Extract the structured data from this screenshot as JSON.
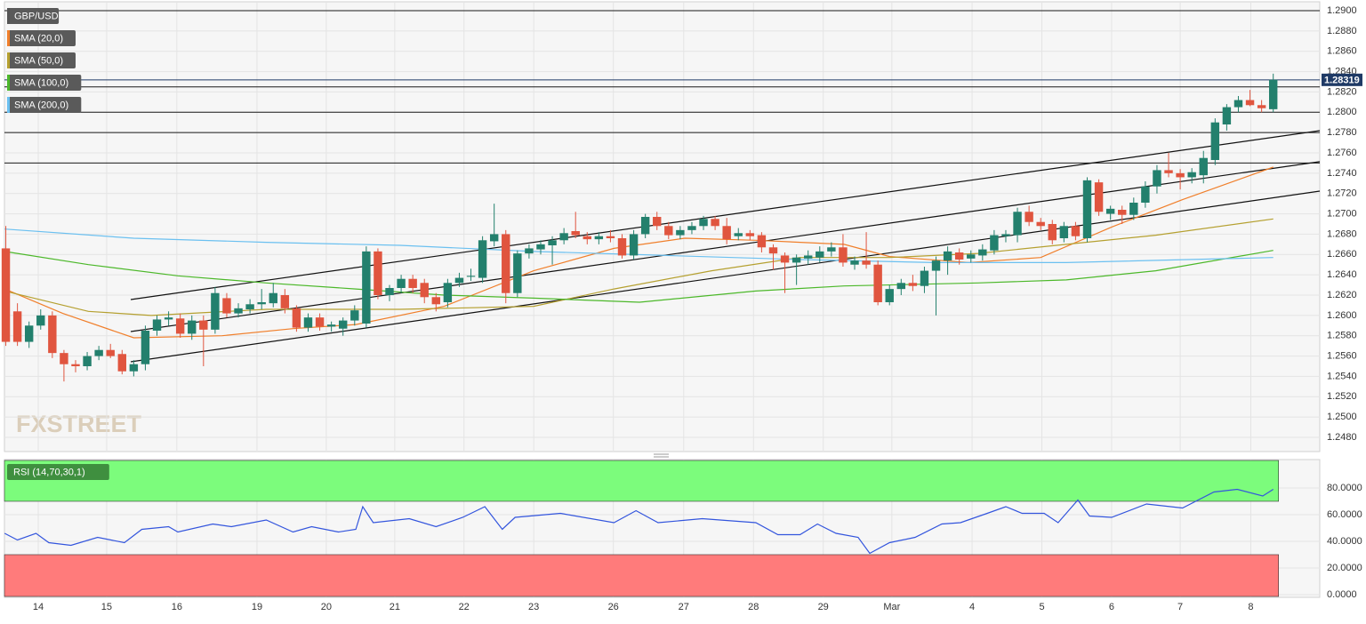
{
  "chart_data": [
    {
      "type": "candlestick",
      "title": "GBP/USD",
      "xlim": [
        -0.5,
        113
      ],
      "ylim": [
        1.2466,
        1.29105
      ],
      "yticks": [
        {
          "value": 1.248,
          "label": "1.2480"
        },
        {
          "value": 1.25,
          "label": "1.2500"
        },
        {
          "value": 1.252,
          "label": "1.2520"
        },
        {
          "value": 1.254,
          "label": "1.2540"
        },
        {
          "value": 1.256,
          "label": "1.2560"
        },
        {
          "value": 1.258,
          "label": "1.2580"
        },
        {
          "value": 1.26,
          "label": "1.2600"
        },
        {
          "value": 1.262,
          "label": "1.2620"
        },
        {
          "value": 1.264,
          "label": "1.2640"
        },
        {
          "value": 1.266,
          "label": "1.2660"
        },
        {
          "value": 1.268,
          "label": "1.2680"
        },
        {
          "value": 1.27,
          "label": "1.2700"
        },
        {
          "value": 1.272,
          "label": "1.2720"
        },
        {
          "value": 1.274,
          "label": "1.2740"
        },
        {
          "value": 1.276,
          "label": "1.2760"
        },
        {
          "value": 1.278,
          "label": "1.2780"
        },
        {
          "value": 1.28,
          "label": "1.2800"
        },
        {
          "value": 1.282,
          "label": "1.2820"
        },
        {
          "value": 1.284,
          "label": "1.2840"
        },
        {
          "value": 1.286,
          "label": "1.2860"
        },
        {
          "value": 1.288,
          "label": "1.2880"
        },
        {
          "value": 1.29,
          "label": "1.2900"
        }
      ],
      "grid": true,
      "up_color": "#23806d",
      "down_color": "#e0553f",
      "ohlc": [
        [
          1.2666,
          1.2688,
          1.257,
          1.2574
        ],
        [
          1.2604,
          1.2612,
          1.257,
          1.2574
        ],
        [
          1.2574,
          1.2594,
          1.2568,
          1.259
        ],
        [
          1.259,
          1.2606,
          1.2586,
          1.26
        ],
        [
          1.26,
          1.2604,
          1.2558,
          1.2563
        ],
        [
          1.2563,
          1.2566,
          1.2535,
          1.2552
        ],
        [
          1.2552,
          1.2556,
          1.2544,
          1.255
        ],
        [
          1.255,
          1.2564,
          1.2546,
          1.256
        ],
        [
          1.256,
          1.257,
          1.2556,
          1.2566
        ],
        [
          1.2566,
          1.2572,
          1.2558,
          1.256
        ],
        [
          1.2562,
          1.2566,
          1.2542,
          1.2545
        ],
        [
          1.2545,
          1.2556,
          1.254,
          1.2552
        ],
        [
          1.2552,
          1.259,
          1.2546,
          1.2585
        ],
        [
          1.2585,
          1.26,
          1.258,
          1.2596
        ],
        [
          1.2596,
          1.2604,
          1.259,
          1.2598
        ],
        [
          1.2597,
          1.2602,
          1.2578,
          1.2582
        ],
        [
          1.2582,
          1.26,
          1.2576,
          1.2595
        ],
        [
          1.2595,
          1.26,
          1.255,
          1.2586
        ],
        [
          1.2586,
          1.2628,
          1.2582,
          1.2622
        ],
        [
          1.2617,
          1.2622,
          1.2598,
          1.2602
        ],
        [
          1.2602,
          1.2612,
          1.2598,
          1.2607
        ],
        [
          1.2606,
          1.2616,
          1.2602,
          1.2611
        ],
        [
          1.2611,
          1.2626,
          1.2606,
          1.2613
        ],
        [
          1.2612,
          1.2632,
          1.2608,
          1.2622
        ],
        [
          1.262,
          1.2626,
          1.2602,
          1.2607
        ],
        [
          1.2607,
          1.261,
          1.2584,
          1.2588
        ],
        [
          1.2588,
          1.2602,
          1.2584,
          1.2598
        ],
        [
          1.2598,
          1.2602,
          1.2585,
          1.2589
        ],
        [
          1.2589,
          1.2594,
          1.2584,
          1.2591
        ],
        [
          1.2587,
          1.2598,
          1.258,
          1.2595
        ],
        [
          1.2595,
          1.261,
          1.259,
          1.2605
        ],
        [
          1.2592,
          1.2668,
          1.2588,
          1.2663
        ],
        [
          1.2663,
          1.2666,
          1.2616,
          1.262
        ],
        [
          1.262,
          1.263,
          1.2614,
          1.2627
        ],
        [
          1.2627,
          1.264,
          1.2622,
          1.2636
        ],
        [
          1.2636,
          1.264,
          1.2622,
          1.2627
        ],
        [
          1.2632,
          1.2636,
          1.2612,
          1.2618
        ],
        [
          1.2618,
          1.2622,
          1.2604,
          1.2611
        ],
        [
          1.2613,
          1.2636,
          1.2608,
          1.2632
        ],
        [
          1.2632,
          1.2642,
          1.2628,
          1.2637
        ],
        [
          1.2638,
          1.2646,
          1.2634,
          1.2639
        ],
        [
          1.2637,
          1.2678,
          1.2632,
          1.2674
        ],
        [
          1.2673,
          1.271,
          1.2668,
          1.268
        ],
        [
          1.268,
          1.2684,
          1.2612,
          1.2622
        ],
        [
          1.2622,
          1.2664,
          1.2618,
          1.2661
        ],
        [
          1.2661,
          1.267,
          1.2656,
          1.2666
        ],
        [
          1.2665,
          1.2674,
          1.266,
          1.267
        ],
        [
          1.2669,
          1.2678,
          1.265,
          1.2674
        ],
        [
          1.2674,
          1.2686,
          1.267,
          1.2681
        ],
        [
          1.2683,
          1.2702,
          1.2676,
          1.2679
        ],
        [
          1.2678,
          1.2682,
          1.267,
          1.2675
        ],
        [
          1.2675,
          1.2682,
          1.267,
          1.2678
        ],
        [
          1.2678,
          1.2684,
          1.2672,
          1.2676
        ],
        [
          1.2676,
          1.268,
          1.2656,
          1.2659
        ],
        [
          1.2659,
          1.2684,
          1.2655,
          1.268
        ],
        [
          1.268,
          1.27,
          1.2676,
          1.2697
        ],
        [
          1.2697,
          1.2702,
          1.2684,
          1.2688
        ],
        [
          1.2688,
          1.2692,
          1.2675,
          1.2679
        ],
        [
          1.2679,
          1.2688,
          1.2675,
          1.2684
        ],
        [
          1.2684,
          1.2692,
          1.268,
          1.2688
        ],
        [
          1.2688,
          1.2698,
          1.2684,
          1.2695
        ],
        [
          1.2695,
          1.2698,
          1.2684,
          1.2688
        ],
        [
          1.2688,
          1.2696,
          1.267,
          1.2675
        ],
        [
          1.2678,
          1.2686,
          1.2674,
          1.2681
        ],
        [
          1.2681,
          1.2684,
          1.2674,
          1.2678
        ],
        [
          1.2679,
          1.2682,
          1.2662,
          1.2667
        ],
        [
          1.2667,
          1.267,
          1.2645,
          1.2661
        ],
        [
          1.2659,
          1.2662,
          1.2622,
          1.2652
        ],
        [
          1.2652,
          1.266,
          1.263,
          1.2657
        ],
        [
          1.2656,
          1.2664,
          1.265,
          1.2659
        ],
        [
          1.2657,
          1.2668,
          1.2652,
          1.2663
        ],
        [
          1.2663,
          1.2672,
          1.2658,
          1.2667
        ],
        [
          1.2667,
          1.268,
          1.2648,
          1.2652
        ],
        [
          1.265,
          1.2658,
          1.2645,
          1.2654
        ],
        [
          1.2654,
          1.2682,
          1.2646,
          1.265
        ],
        [
          1.265,
          1.2654,
          1.261,
          1.2613
        ],
        [
          1.2613,
          1.263,
          1.261,
          1.2626
        ],
        [
          1.2626,
          1.2636,
          1.262,
          1.2632
        ],
        [
          1.2632,
          1.264,
          1.2624,
          1.2629
        ],
        [
          1.2629,
          1.2648,
          1.2622,
          1.2644
        ],
        [
          1.2644,
          1.2658,
          1.26,
          1.2654
        ],
        [
          1.2654,
          1.2668,
          1.264,
          1.2663
        ],
        [
          1.2662,
          1.2666,
          1.265,
          1.2655
        ],
        [
          1.2656,
          1.2664,
          1.2652,
          1.266
        ],
        [
          1.2659,
          1.267,
          1.2654,
          1.2665
        ],
        [
          1.2664,
          1.2684,
          1.266,
          1.2679
        ],
        [
          1.2678,
          1.2684,
          1.2672,
          1.268
        ],
        [
          1.2679,
          1.2706,
          1.2672,
          1.2702
        ],
        [
          1.2702,
          1.2708,
          1.2688,
          1.2692
        ],
        [
          1.2692,
          1.2696,
          1.2684,
          1.2688
        ],
        [
          1.269,
          1.2694,
          1.267,
          1.2674
        ],
        [
          1.2676,
          1.2692,
          1.2672,
          1.2688
        ],
        [
          1.2688,
          1.2692,
          1.2674,
          1.2678
        ],
        [
          1.2676,
          1.2736,
          1.2672,
          1.2733
        ],
        [
          1.2731,
          1.2734,
          1.2698,
          1.2702
        ],
        [
          1.27,
          1.2708,
          1.2694,
          1.2705
        ],
        [
          1.2704,
          1.2708,
          1.269,
          1.2699
        ],
        [
          1.2699,
          1.2716,
          1.2694,
          1.2711
        ],
        [
          1.2711,
          1.2732,
          1.2706,
          1.2727
        ],
        [
          1.2727,
          1.2748,
          1.272,
          1.2743
        ],
        [
          1.2743,
          1.276,
          1.2736,
          1.274
        ],
        [
          1.274,
          1.2744,
          1.2724,
          1.2736
        ],
        [
          1.2736,
          1.2745,
          1.273,
          1.2741
        ],
        [
          1.2738,
          1.2762,
          1.273,
          1.2755
        ],
        [
          1.2753,
          1.2794,
          1.2748,
          1.279
        ],
        [
          1.2788,
          1.2808,
          1.2782,
          1.2805
        ],
        [
          1.2805,
          1.2816,
          1.28,
          1.2812
        ],
        [
          1.2812,
          1.2822,
          1.2806,
          1.2807
        ],
        [
          1.2807,
          1.2812,
          1.28,
          1.2804
        ],
        [
          1.2803,
          1.2838,
          1.28,
          1.2832
        ]
      ],
      "series": [
        {
          "name": "SMA (20,0)",
          "color": "#f07f2b",
          "x": [
            -0.1,
            4.9,
            11.0,
            18.6,
            24.7,
            30.1,
            37.7,
            45.4,
            52.3,
            58.4,
            64.5,
            72.1,
            76.0,
            82.8,
            89.0,
            95.1,
            101.2,
            109.0
          ],
          "values": [
            1.2626,
            1.2602,
            1.2578,
            1.258,
            1.2587,
            1.2591,
            1.2609,
            1.2644,
            1.2666,
            1.2676,
            1.2674,
            1.267,
            1.2658,
            1.2652,
            1.2657,
            1.2687,
            1.2714,
            1.2746
          ]
        },
        {
          "name": "SMA (50,0)",
          "color": "#b5a030",
          "x": [
            -0.1,
            7.1,
            12.5,
            22.4,
            33.9,
            45.4,
            52.3,
            60.7,
            68.3,
            76.0,
            83.6,
            91.2,
            98.9,
            109.0
          ],
          "values": [
            1.2624,
            1.2604,
            1.26,
            1.2606,
            1.2606,
            1.2609,
            1.2626,
            1.2644,
            1.2657,
            1.2657,
            1.2661,
            1.267,
            1.2679,
            1.2695
          ]
        },
        {
          "name": "SMA (100,0)",
          "color": "#4cb82a",
          "x": [
            -0.1,
            7.1,
            14.8,
            22.4,
            30.1,
            37.7,
            45.4,
            54.5,
            64.5,
            72.1,
            83.6,
            91.2,
            98.9,
            109.0
          ],
          "values": [
            1.2663,
            1.265,
            1.2639,
            1.2632,
            1.2626,
            1.262,
            1.2617,
            1.2613,
            1.2624,
            1.2629,
            1.2632,
            1.2635,
            1.2644,
            1.2664
          ]
        },
        {
          "name": "SMA (200,0)",
          "color": "#6bc0f0",
          "x": [
            -0.1,
            11.0,
            22.4,
            33.9,
            45.4,
            56.8,
            68.3,
            79.8,
            91.2,
            109.0
          ],
          "values": [
            1.2685,
            1.2676,
            1.2672,
            1.2669,
            1.2663,
            1.2659,
            1.2655,
            1.2652,
            1.2652,
            1.2657
          ]
        }
      ],
      "levels": [
        1.29,
        1.2825,
        1.28,
        1.278,
        1.275
      ],
      "trendlines": [
        {
          "x": [
            10.74,
            113
          ],
          "values": [
            1.26156,
            1.27819
          ]
        },
        {
          "x": [
            10.74,
            113
          ],
          "values": [
            1.25841,
            1.27513
          ]
        },
        {
          "x": [
            10.74,
            113
          ],
          "values": [
            1.25544,
            1.27224
          ]
        }
      ],
      "last_price": 1.28319,
      "last_price_color": "#1f3a66",
      "watermark": "FXSTREET"
    },
    {
      "type": "line",
      "xlim": [
        -0.5,
        113
      ],
      "ylim": [
        -2,
        101.3
      ],
      "yticks": [
        {
          "value": 0,
          "label": "0.0000"
        },
        {
          "value": 20,
          "label": "20.0000"
        },
        {
          "value": 40,
          "label": "40.0000"
        },
        {
          "value": 60,
          "label": "60.0000"
        },
        {
          "value": 80,
          "label": "80.0000"
        }
      ],
      "xticks": [
        {
          "value": 2.79,
          "label": "14"
        },
        {
          "value": 8.67,
          "label": "15"
        },
        {
          "value": 14.71,
          "label": "16"
        },
        {
          "value": 21.6,
          "label": "19"
        },
        {
          "value": 27.56,
          "label": "20"
        },
        {
          "value": 33.45,
          "label": "21"
        },
        {
          "value": 39.4,
          "label": "22"
        },
        {
          "value": 45.4,
          "label": "23"
        },
        {
          "value": 52.25,
          "label": "26"
        },
        {
          "value": 58.3,
          "label": "27"
        },
        {
          "value": 64.3,
          "label": "28"
        },
        {
          "value": 70.3,
          "label": "29"
        },
        {
          "value": 76.2,
          "label": "Mar"
        },
        {
          "value": 83.1,
          "label": "4"
        },
        {
          "value": 89.1,
          "label": "5"
        },
        {
          "value": 95.1,
          "label": "6"
        },
        {
          "value": 101,
          "label": "7"
        },
        {
          "value": 107.07,
          "label": "8"
        }
      ],
      "overbought": 70,
      "oversold": 30,
      "overbought_color": "#7cfc7c",
      "oversold_color": "#ff7b7b",
      "series": [
        {
          "name": "RSI (14,70,30,1)",
          "color": "#3355dd",
          "x": [
            -0.1,
            1.0,
            2.6,
            3.7,
            5.6,
            7.9,
            10.2,
            11.7,
            14.0,
            14.8,
            17.8,
            19.4,
            22.4,
            24.7,
            26.3,
            28.6,
            30.1,
            30.7,
            31.6,
            34.7,
            37.0,
            39.3,
            41.2,
            42.7,
            43.8,
            47.7,
            52.3,
            54.2,
            56.1,
            59.9,
            64.5,
            66.4,
            68.3,
            69.8,
            71.4,
            73.3,
            74.3,
            76.0,
            78.2,
            80.5,
            82.1,
            84.4,
            86.0,
            87.4,
            89.3,
            90.5,
            92.2,
            93.2,
            95.1,
            98.1,
            101.2,
            103.9,
            105.9,
            108.1,
            109.0
          ],
          "values": [
            46,
            41,
            46,
            39,
            37,
            43,
            39,
            49,
            51,
            47,
            53,
            51,
            56,
            47,
            51,
            47,
            49,
            66,
            54,
            57,
            51,
            58,
            66,
            49,
            58,
            61,
            54,
            63,
            54,
            57,
            54,
            45,
            45,
            53,
            46,
            43,
            31,
            39,
            43,
            53,
            54,
            61,
            66,
            61,
            61,
            54,
            71,
            59,
            58,
            68,
            65,
            77,
            79,
            74,
            79
          ]
        }
      ]
    }
  ]
}
